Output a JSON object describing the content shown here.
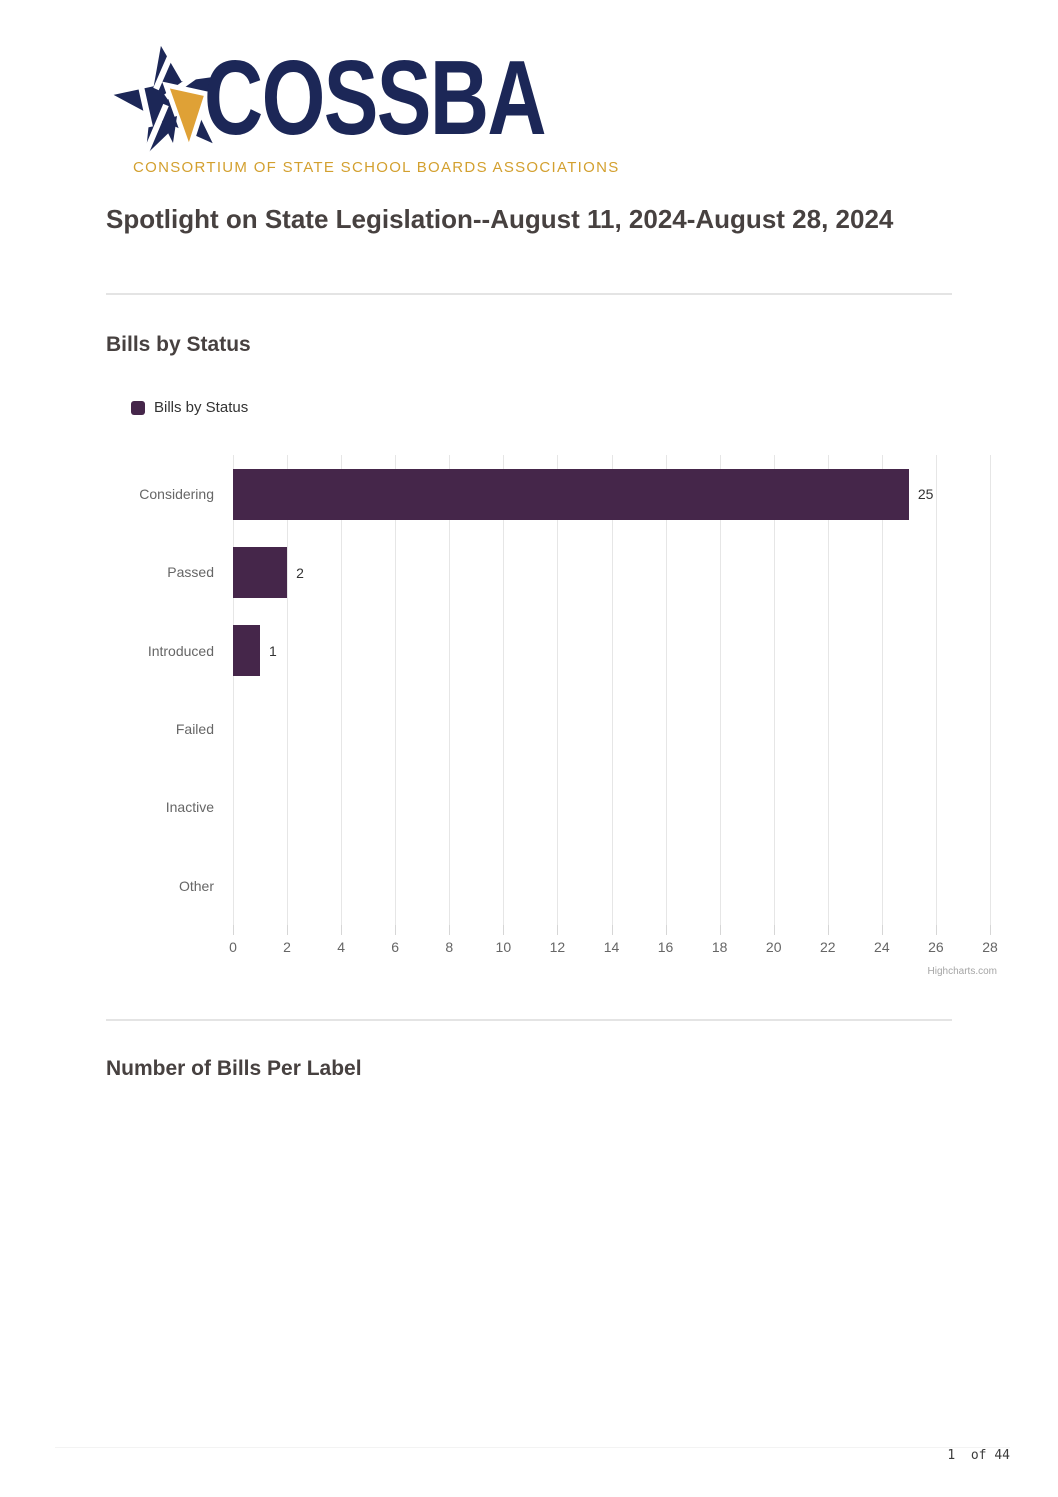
{
  "logo": {
    "brand": "COSSBA",
    "tagline": "CONSORTIUM OF STATE SCHOOL BOARDS ASSOCIATIONS",
    "navy": "#1C2757",
    "gold": "#DFA136"
  },
  "document": {
    "title": "Spotlight on State Legislation--August 11, 2024-August 28, 2024",
    "page_number": "1  of 44"
  },
  "sections": [
    {
      "heading": "Bills by Status"
    },
    {
      "heading": "Number of Bills Per Label"
    }
  ],
  "chart_data": {
    "type": "bar",
    "orientation": "horizontal",
    "title": "Bills by Status",
    "legend": "Bills by Status",
    "legend_position": "top-left",
    "categories": [
      "Considering",
      "Passed",
      "Introduced",
      "Failed",
      "Inactive",
      "Other"
    ],
    "values": [
      25,
      2,
      1,
      0,
      0,
      0
    ],
    "xlabel": "",
    "ylabel": "",
    "xlim": [
      0,
      28
    ],
    "x_ticks": [
      0,
      2,
      4,
      6,
      8,
      10,
      12,
      14,
      16,
      18,
      20,
      22,
      24,
      26,
      28
    ],
    "grid": true,
    "bar_color": "#45264A",
    "gridline_color": "#e6e6e6",
    "credit": "Highcharts.com"
  }
}
